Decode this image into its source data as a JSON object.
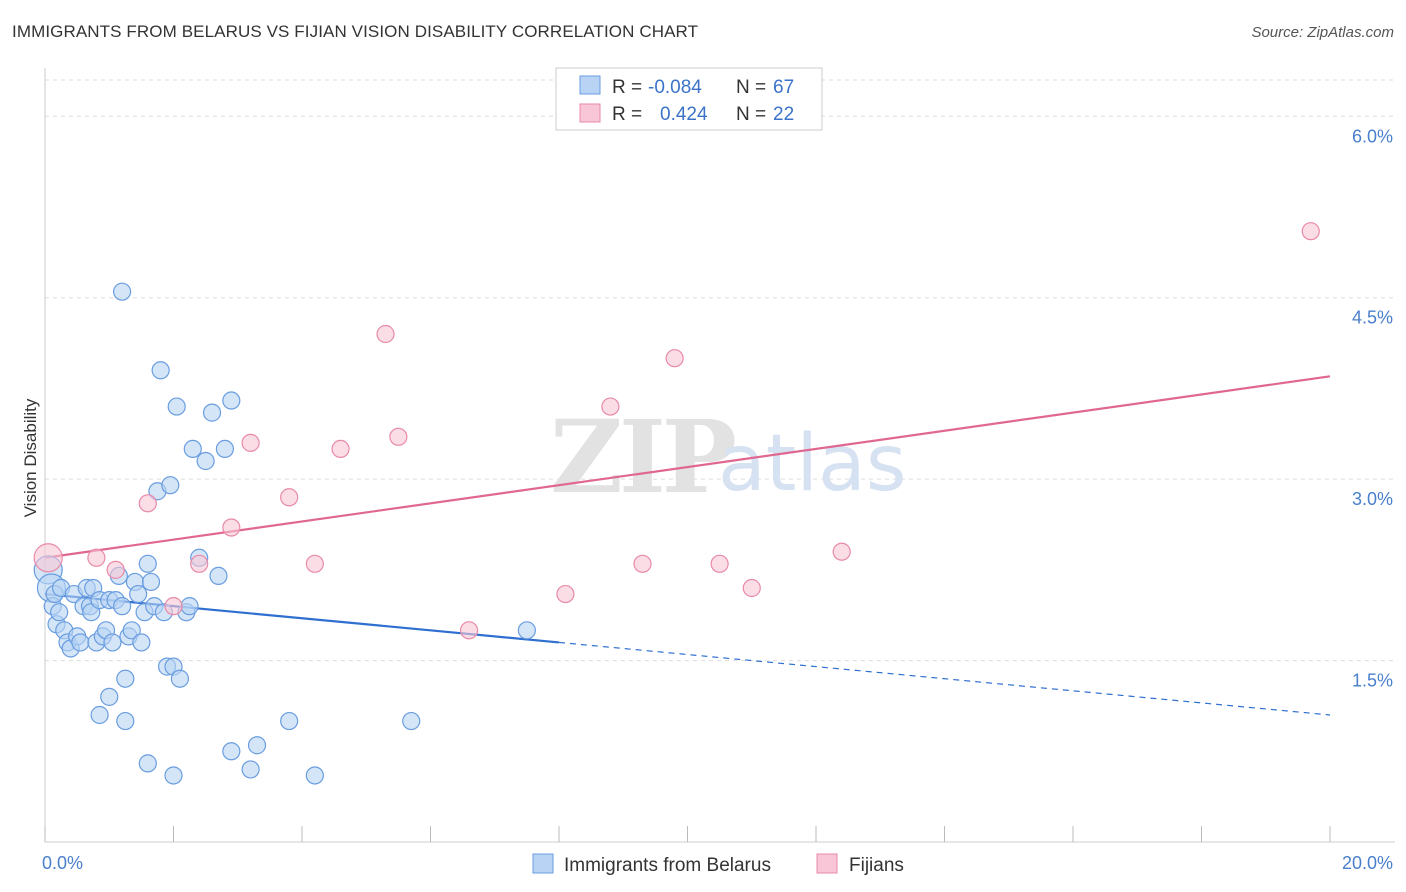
{
  "title": "IMMIGRANTS FROM BELARUS VS FIJIAN VISION DISABILITY CORRELATION CHART",
  "source": "Source: ZipAtlas.com",
  "watermark": {
    "zip": "ZIP",
    "atlas": "atlas"
  },
  "colors": {
    "blue_fill": "#b8d3f3",
    "blue_stroke": "#6a9de0",
    "blue_line": "#2f6fd0",
    "pink_fill": "#f8c6d6",
    "pink_stroke": "#e88aa8",
    "pink_line": "#e06890",
    "grid": "#dddddd",
    "tick_text": "#4a7fcc"
  },
  "legend": {
    "rows": [
      {
        "r_label": "R =",
        "r_value": "-0.084",
        "n_label": "N =",
        "n_value": "67",
        "series": "blue"
      },
      {
        "r_label": "R =",
        "r_value": "0.424",
        "n_label": "N =",
        "n_value": "22",
        "series": "pink"
      }
    ]
  },
  "chart_data": {
    "type": "scatter",
    "title": "IMMIGRANTS FROM BELARUS VS FIJIAN VISION DISABILITY CORRELATION CHART",
    "xlabel": "",
    "ylabel": "Vision Disability",
    "xlim": [
      0,
      20
    ],
    "ylim": [
      0,
      6.3
    ],
    "x_ticks": [
      {
        "value": 0,
        "label": "0.0%"
      },
      {
        "value": 20,
        "label": "20.0%"
      }
    ],
    "y_ticks": [
      {
        "value": 1.5,
        "label": "1.5%"
      },
      {
        "value": 3.0,
        "label": "3.0%"
      },
      {
        "value": 4.5,
        "label": "4.5%"
      },
      {
        "value": 6.0,
        "label": "6.0%"
      }
    ],
    "grid": true,
    "legend_position": "top-center",
    "series": [
      {
        "name": "Immigrants from Belarus",
        "color": "blue",
        "points": [
          [
            0.05,
            2.25
          ],
          [
            0.1,
            2.1
          ],
          [
            0.12,
            1.95
          ],
          [
            0.15,
            2.05
          ],
          [
            0.18,
            1.8
          ],
          [
            0.22,
            1.9
          ],
          [
            0.25,
            2.1
          ],
          [
            0.3,
            1.75
          ],
          [
            0.35,
            1.65
          ],
          [
            0.4,
            1.6
          ],
          [
            0.45,
            2.05
          ],
          [
            0.5,
            1.7
          ],
          [
            0.55,
            1.65
          ],
          [
            0.6,
            1.95
          ],
          [
            0.65,
            2.1
          ],
          [
            0.7,
            1.95
          ],
          [
            0.72,
            1.9
          ],
          [
            0.75,
            2.1
          ],
          [
            0.8,
            1.65
          ],
          [
            0.85,
            2.0
          ],
          [
            0.9,
            1.7
          ],
          [
            0.95,
            1.75
          ],
          [
            1.0,
            2.0
          ],
          [
            1.05,
            1.65
          ],
          [
            1.1,
            2.0
          ],
          [
            1.15,
            2.2
          ],
          [
            1.2,
            1.95
          ],
          [
            1.25,
            1.35
          ],
          [
            1.3,
            1.7
          ],
          [
            1.35,
            1.75
          ],
          [
            1.4,
            2.15
          ],
          [
            1.45,
            2.05
          ],
          [
            1.5,
            1.65
          ],
          [
            1.55,
            1.9
          ],
          [
            1.6,
            2.3
          ],
          [
            1.65,
            2.15
          ],
          [
            1.7,
            1.95
          ],
          [
            1.75,
            2.9
          ],
          [
            1.8,
            3.9
          ],
          [
            1.85,
            1.9
          ],
          [
            1.9,
            1.45
          ],
          [
            1.95,
            2.95
          ],
          [
            2.0,
            1.45
          ],
          [
            2.05,
            3.6
          ],
          [
            2.1,
            1.35
          ],
          [
            2.2,
            1.9
          ],
          [
            2.3,
            3.25
          ],
          [
            2.4,
            2.35
          ],
          [
            2.5,
            3.15
          ],
          [
            2.6,
            3.55
          ],
          [
            2.7,
            2.2
          ],
          [
            2.8,
            3.25
          ],
          [
            2.9,
            3.65
          ],
          [
            1.2,
            4.55
          ],
          [
            0.85,
            1.05
          ],
          [
            1.0,
            1.2
          ],
          [
            1.25,
            1.0
          ],
          [
            1.6,
            0.65
          ],
          [
            2.0,
            0.55
          ],
          [
            2.9,
            0.75
          ],
          [
            3.2,
            0.6
          ],
          [
            3.3,
            0.8
          ],
          [
            3.8,
            1.0
          ],
          [
            4.2,
            0.55
          ],
          [
            5.7,
            1.0
          ],
          [
            7.5,
            1.75
          ],
          [
            2.25,
            1.95
          ]
        ],
        "trend": {
          "x_solid": [
            0,
            8
          ],
          "y_solid": [
            2.05,
            1.65
          ],
          "x_dashed": [
            8,
            20
          ],
          "y_dashed": [
            1.65,
            1.05
          ]
        }
      },
      {
        "name": "Fijians",
        "color": "pink",
        "points": [
          [
            0.05,
            2.35
          ],
          [
            0.8,
            2.35
          ],
          [
            1.1,
            2.25
          ],
          [
            1.6,
            2.8
          ],
          [
            2.0,
            1.95
          ],
          [
            2.4,
            2.3
          ],
          [
            2.9,
            2.6
          ],
          [
            3.2,
            3.3
          ],
          [
            3.8,
            2.85
          ],
          [
            4.2,
            2.3
          ],
          [
            4.6,
            3.25
          ],
          [
            5.3,
            4.2
          ],
          [
            5.5,
            3.35
          ],
          [
            6.6,
            1.75
          ],
          [
            8.1,
            2.05
          ],
          [
            8.8,
            3.6
          ],
          [
            9.3,
            2.3
          ],
          [
            9.8,
            4.0
          ],
          [
            10.5,
            2.3
          ],
          [
            11.0,
            2.1
          ],
          [
            12.4,
            2.4
          ],
          [
            19.7,
            5.05
          ]
        ],
        "trend": {
          "x": [
            0,
            20
          ],
          "y": [
            2.35,
            3.85
          ]
        }
      }
    ]
  }
}
